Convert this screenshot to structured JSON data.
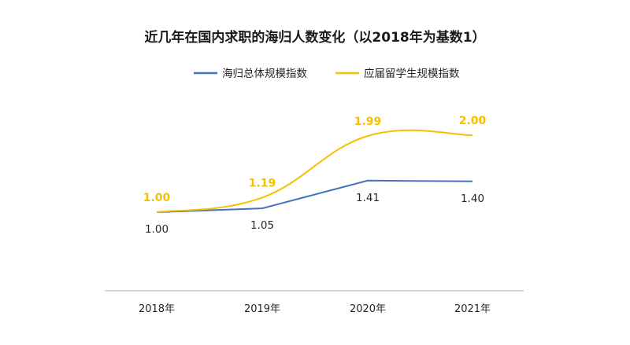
{
  "chart_data": {
    "type": "line",
    "title": "近几年在国内求职的海归人数变化（以2018年为基数1）",
    "categories": [
      "2018年",
      "2019年",
      "2020年",
      "2021年"
    ],
    "series": [
      {
        "name": "海归总体规模指数",
        "values": [
          1.0,
          1.05,
          1.41,
          1.4
        ],
        "labels": [
          "1.00",
          "1.05",
          "1.41",
          "1.40"
        ],
        "color": "#4472c4"
      },
      {
        "name": "应届留学生规模指数",
        "values": [
          1.0,
          1.19,
          1.99,
          2.0
        ],
        "labels": [
          "1.00",
          "1.19",
          "1.99",
          "2.00"
        ],
        "color": "#f5c000"
      }
    ],
    "legend": "top-center",
    "grid": false,
    "xlabel": "",
    "ylabel": ""
  }
}
